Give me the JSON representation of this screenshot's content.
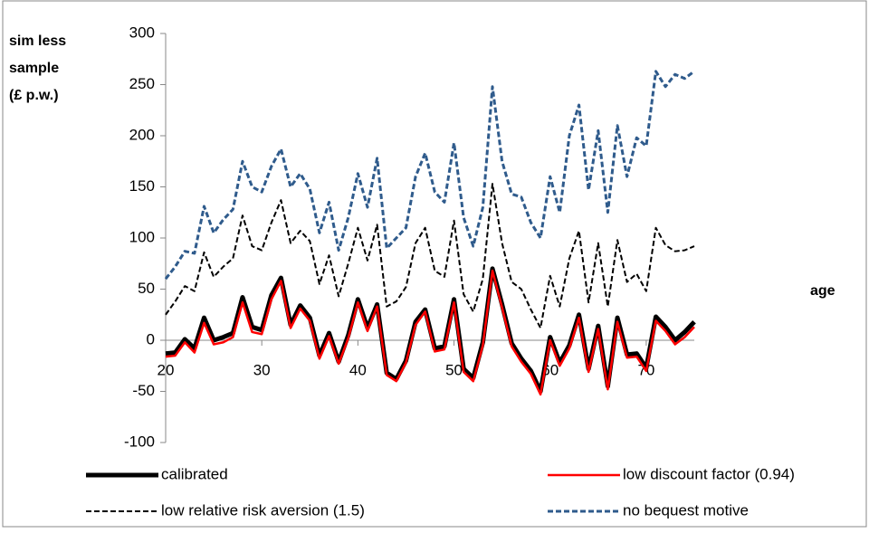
{
  "chart_data": {
    "type": "line",
    "ylabel": [
      "sim less",
      "sample",
      "(£ p.w.)"
    ],
    "xlabel": "age",
    "x": [
      20,
      21,
      22,
      23,
      24,
      25,
      26,
      27,
      28,
      29,
      30,
      31,
      32,
      33,
      34,
      35,
      36,
      37,
      38,
      39,
      40,
      41,
      42,
      43,
      44,
      45,
      46,
      47,
      48,
      49,
      50,
      51,
      52,
      53,
      54,
      55,
      56,
      57,
      58,
      59,
      60,
      61,
      62,
      63,
      64,
      65,
      66,
      67,
      68,
      69,
      70,
      71,
      72,
      73,
      74,
      75
    ],
    "xlim": [
      20,
      75
    ],
    "xticks": [
      20,
      30,
      40,
      50,
      60,
      70
    ],
    "ylim": [
      -100,
      300
    ],
    "yticks": [
      -100,
      -50,
      0,
      50,
      100,
      150,
      200,
      250,
      300
    ],
    "series": [
      {
        "name": "no bequest motive",
        "color": "#2f5b8c",
        "dash": true,
        "values": [
          60,
          72,
          87,
          85,
          131,
          105,
          118,
          128,
          175,
          150,
          145,
          170,
          187,
          150,
          163,
          148,
          105,
          135,
          88,
          120,
          163,
          130,
          178,
          90,
          100,
          110,
          160,
          183,
          145,
          135,
          193,
          120,
          92,
          130,
          248,
          175,
          143,
          140,
          115,
          100,
          160,
          125,
          200,
          230,
          147,
          205,
          125,
          210,
          160,
          198,
          190,
          263,
          248,
          260,
          256,
          263
        ]
      },
      {
        "name": "low relative risk aversion (1.5)",
        "color": "#000000",
        "dash": true,
        "values": [
          25,
          38,
          53,
          48,
          86,
          62,
          72,
          80,
          122,
          92,
          88,
          115,
          137,
          95,
          107,
          97,
          55,
          83,
          43,
          75,
          110,
          78,
          113,
          33,
          38,
          52,
          95,
          110,
          68,
          62,
          117,
          45,
          28,
          60,
          153,
          95,
          57,
          50,
          30,
          12,
          63,
          33,
          80,
          107,
          37,
          95,
          33,
          98,
          57,
          65,
          48,
          110,
          93,
          87,
          88,
          92
        ]
      },
      {
        "name": "calibrated",
        "color": "#000000",
        "dash": false,
        "values": [
          -13,
          -12,
          1,
          -8,
          22,
          0,
          3,
          7,
          42,
          13,
          10,
          44,
          61,
          15,
          34,
          22,
          -15,
          7,
          -21,
          5,
          40,
          12,
          35,
          -32,
          -38,
          -20,
          18,
          30,
          -8,
          -6,
          40,
          -28,
          -37,
          -2,
          70,
          35,
          -3,
          -18,
          -30,
          -50,
          3,
          -22,
          -5,
          25,
          -28,
          14,
          -45,
          22,
          -14,
          -13,
          -27,
          23,
          13,
          0,
          8,
          18
        ]
      },
      {
        "name": "low discount factor (0.94)",
        "color": "#ff0000",
        "dash": false,
        "values": [
          -16,
          -15,
          -2,
          -12,
          17,
          -4,
          -2,
          3,
          37,
          8,
          6,
          40,
          58,
          12,
          31,
          19,
          -18,
          4,
          -23,
          2,
          37,
          9,
          33,
          -34,
          -40,
          -22,
          15,
          28,
          -11,
          -9,
          37,
          -31,
          -40,
          -5,
          68,
          32,
          -6,
          -21,
          -33,
          -53,
          0,
          -25,
          -8,
          22,
          -31,
          11,
          -48,
          18,
          -17,
          -16,
          -30,
          19,
          9,
          -4,
          3,
          13
        ]
      }
    ]
  }
}
